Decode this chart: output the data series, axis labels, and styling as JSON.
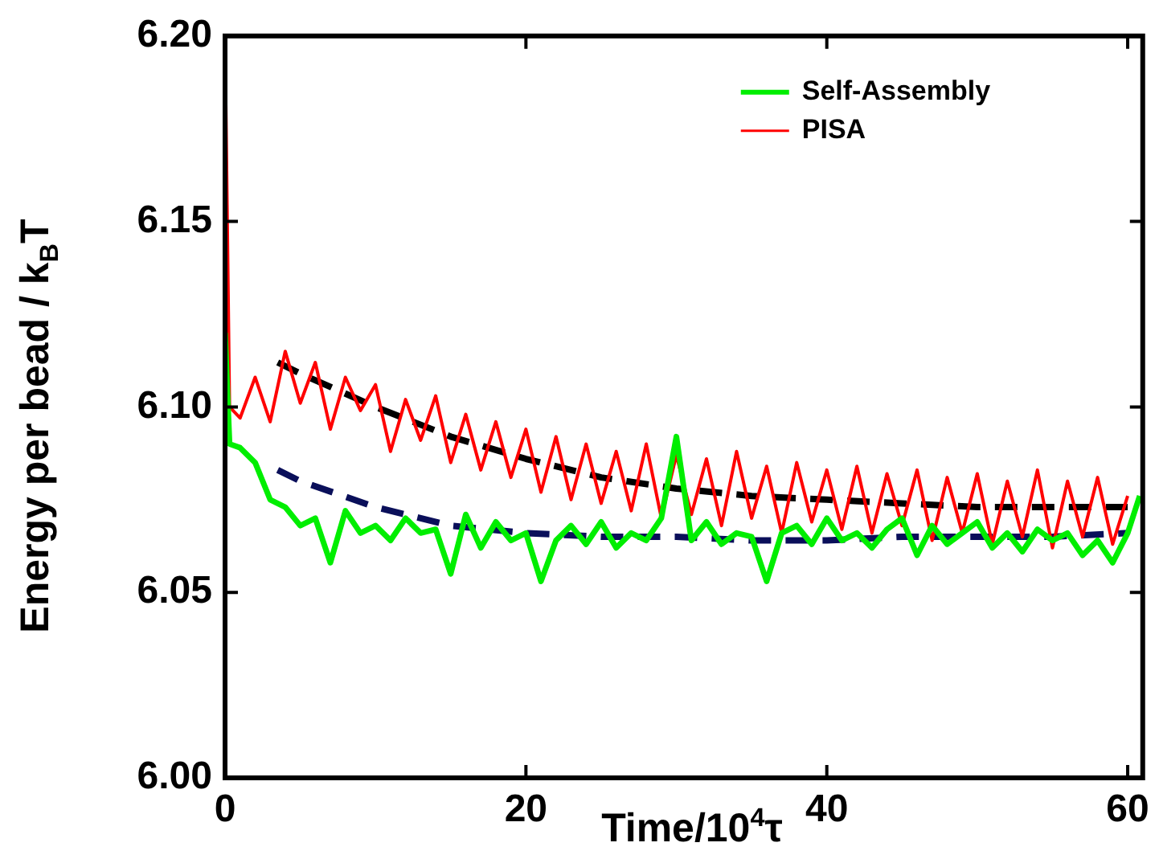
{
  "chart_data": {
    "type": "line",
    "xlabel": "Time/10$^{4}$τ",
    "ylabel": "Energy per bead / k$_{B}$T",
    "xlim": [
      0,
      61
    ],
    "xticks": [
      0,
      20,
      40,
      60
    ],
    "ylim": [
      6.0,
      6.2
    ],
    "yticks": [
      {
        "value": 6.0,
        "label": "6.00"
      },
      6.05,
      {
        "value": 6.1,
        "label": "6.10"
      },
      6.15,
      {
        "value": 6.2,
        "label": "6.20"
      }
    ],
    "grid": false,
    "legend": "top right",
    "marker": "none",
    "series": [
      {
        "name": "Self-Assembly",
        "color": "#00ee00",
        "x": [
          0,
          0.3,
          1,
          2,
          3,
          4,
          5,
          6,
          7,
          8,
          9,
          10,
          11,
          12,
          13,
          14,
          15,
          16,
          17,
          18,
          19,
          20,
          21,
          22,
          23,
          24,
          25,
          26,
          27,
          28,
          29,
          30,
          31,
          32,
          33,
          34,
          35,
          36,
          37,
          38,
          39,
          40,
          41,
          42,
          43,
          44,
          45,
          46,
          47,
          48,
          49,
          50,
          51,
          52,
          53,
          54,
          55,
          56,
          57,
          58,
          59,
          60,
          60.8
        ],
        "values": [
          6.12,
          6.09,
          6.089,
          6.085,
          6.075,
          6.073,
          6.068,
          6.07,
          6.058,
          6.072,
          6.066,
          6.068,
          6.064,
          6.07,
          6.066,
          6.067,
          6.055,
          6.071,
          6.062,
          6.069,
          6.064,
          6.066,
          6.053,
          6.064,
          6.068,
          6.063,
          6.069,
          6.062,
          6.066,
          6.064,
          6.07,
          6.092,
          6.064,
          6.069,
          6.063,
          6.066,
          6.065,
          6.053,
          6.066,
          6.068,
          6.063,
          6.07,
          6.064,
          6.066,
          6.062,
          6.067,
          6.07,
          6.06,
          6.068,
          6.063,
          6.066,
          6.069,
          6.062,
          6.066,
          6.061,
          6.067,
          6.064,
          6.066,
          6.06,
          6.064,
          6.058,
          6.066,
          6.076
        ]
      },
      {
        "name": "PISA",
        "color": "#ff0000",
        "x": [
          0,
          0.3,
          1,
          2,
          3,
          4,
          5,
          6,
          7,
          8,
          9,
          10,
          11,
          12,
          13,
          14,
          15,
          16,
          17,
          18,
          19,
          20,
          21,
          22,
          23,
          24,
          25,
          26,
          27,
          28,
          29,
          30,
          31,
          32,
          33,
          34,
          35,
          36,
          37,
          38,
          39,
          40,
          41,
          42,
          43,
          44,
          45,
          46,
          47,
          48,
          49,
          50,
          51,
          52,
          53,
          54,
          55,
          56,
          57,
          58,
          59,
          60
        ],
        "values": [
          6.2,
          6.1,
          6.097,
          6.108,
          6.096,
          6.115,
          6.101,
          6.112,
          6.094,
          6.108,
          6.099,
          6.106,
          6.088,
          6.102,
          6.091,
          6.103,
          6.085,
          6.098,
          6.083,
          6.096,
          6.081,
          6.094,
          6.077,
          6.092,
          6.075,
          6.09,
          6.074,
          6.088,
          6.072,
          6.09,
          6.07,
          6.087,
          6.071,
          6.086,
          6.068,
          6.088,
          6.07,
          6.084,
          6.066,
          6.085,
          6.069,
          6.083,
          6.067,
          6.084,
          6.066,
          6.082,
          6.068,
          6.083,
          6.064,
          6.081,
          6.066,
          6.082,
          6.063,
          6.08,
          6.065,
          6.083,
          6.062,
          6.08,
          6.065,
          6.081,
          6.063,
          6.076
        ]
      },
      {
        "type": "line",
        "color": "#000000",
        "line_style": "dashed",
        "x": [
          3.5,
          5,
          10,
          15,
          20,
          25,
          30,
          35,
          40,
          45,
          50,
          55,
          60
        ],
        "values": [
          6.112,
          6.109,
          6.1,
          6.092,
          6.086,
          6.081,
          6.078,
          6.076,
          6.075,
          6.074,
          6.073,
          6.073,
          6.073
        ]
      },
      {
        "type": "line",
        "color": "#0a0f5a",
        "line_style": "dashed",
        "x": [
          3.5,
          5,
          10,
          15,
          20,
          25,
          30,
          35,
          40,
          45,
          50,
          55,
          60
        ],
        "values": [
          6.083,
          6.08,
          6.073,
          6.068,
          6.066,
          6.065,
          6.065,
          6.064,
          6.064,
          6.065,
          6.065,
          6.065,
          6.066
        ]
      }
    ]
  }
}
